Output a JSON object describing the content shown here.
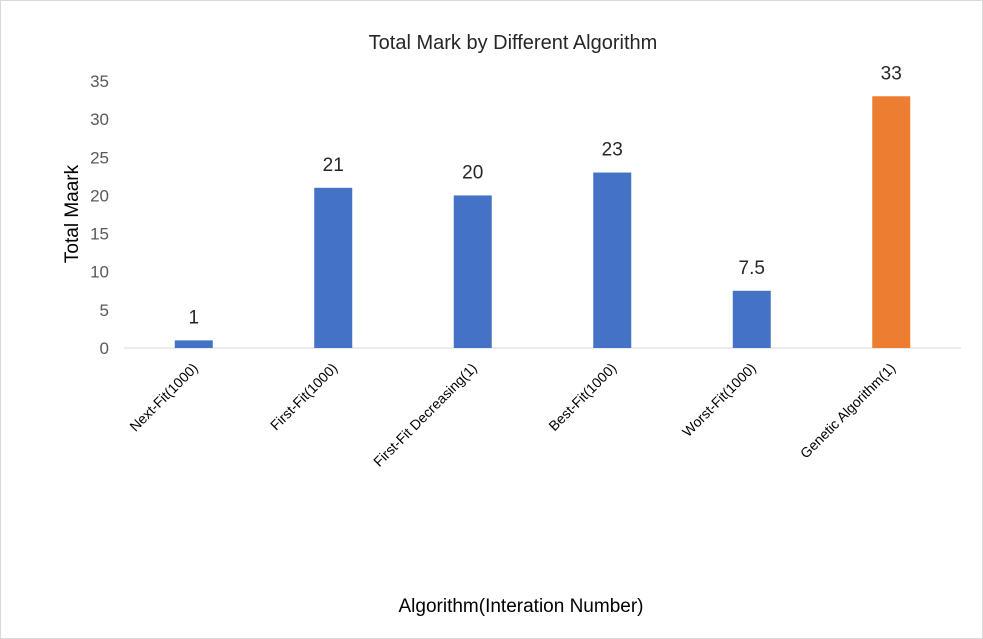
{
  "chart_data": {
    "type": "bar",
    "title": "Total Mark by Different Algorithm",
    "xlabel": "Algorithm(Interation Number)",
    "ylabel": "Total Maark",
    "categories": [
      "Next-Fit(1000)",
      "First-Fit(1000)",
      "First-Fit Decreasing(1)",
      "Best-Fit(1000)",
      "Worst-Fit(1000)",
      "Genetic Algorithm(1)"
    ],
    "values": [
      1,
      21,
      20,
      23,
      7.5,
      33
    ],
    "value_labels": [
      "1",
      "21",
      "20",
      "23",
      "7.5",
      "33"
    ],
    "bar_colors": [
      "#4472c4",
      "#4472c4",
      "#4472c4",
      "#4472c4",
      "#4472c4",
      "#ed7d31"
    ],
    "ylim": [
      0,
      35
    ],
    "yticks": [
      0,
      5,
      10,
      15,
      20,
      25,
      30,
      35
    ],
    "ytick_labels": [
      "0",
      "5",
      "10",
      "15",
      "20",
      "25",
      "30",
      "35"
    ],
    "grid": false,
    "legend": "none"
  }
}
